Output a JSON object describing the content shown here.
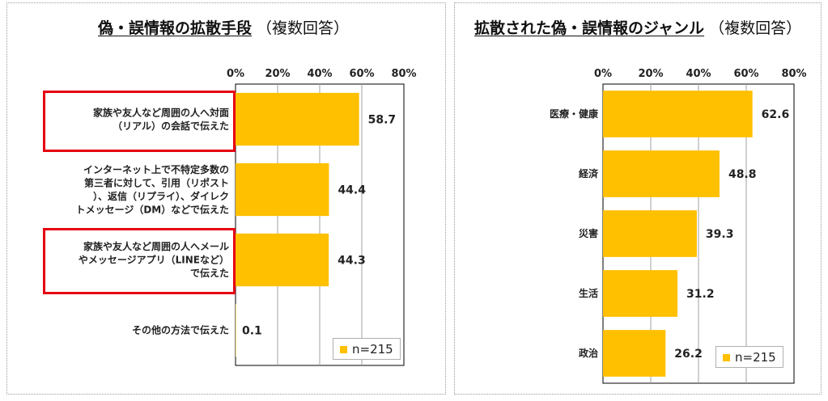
{
  "colors": {
    "bar": "#FFC000",
    "highlight": "#E60012",
    "grid": "#a0a0a0"
  },
  "left": {
    "title": "偽・誤情報の拡散手段",
    "subtitle": "（複数回答）",
    "legend": "n=215"
  },
  "right": {
    "title": "拡散された偽・誤情報のジャンル",
    "subtitle": "（複数回答）",
    "legend": "n=215"
  },
  "chart_data": [
    {
      "type": "bar",
      "orientation": "horizontal",
      "title": "偽・誤情報の拡散手段",
      "subtitle": "（複数回答）",
      "xlim": [
        0,
        80
      ],
      "xticks": [
        "0%",
        "20%",
        "40%",
        "60%",
        "80%"
      ],
      "grid": true,
      "legend": "n=215",
      "legend_position": "bottom-right",
      "categories": [
        [
          "家族や友人など周囲の人へ対面",
          "（リアル）の会話で伝えた"
        ],
        [
          "インターネット上で不特定多数の",
          "第三者に対して、引用（リポスト",
          "）、返信（リプライ）、ダイレク",
          "トメッセージ（DM）などで伝えた"
        ],
        [
          "家族や友人など周囲の人へメール",
          "やメッセージアプリ（LINEなど）",
          "で伝えた"
        ],
        [
          "その他の方法で伝えた"
        ]
      ],
      "values": [
        58.7,
        44.4,
        44.3,
        0.1
      ],
      "value_labels": [
        "58.7",
        "44.4",
        "44.3",
        "0.1"
      ],
      "highlighted": [
        true,
        false,
        true,
        false
      ]
    },
    {
      "type": "bar",
      "orientation": "horizontal",
      "title": "拡散された偽・誤情報のジャンル",
      "subtitle": "（複数回答）",
      "xlim": [
        0,
        80
      ],
      "xticks": [
        "0%",
        "20%",
        "40%",
        "60%",
        "80%"
      ],
      "grid": true,
      "legend": "n=215",
      "legend_position": "bottom-right",
      "categories": [
        [
          "医療・健康"
        ],
        [
          "経済"
        ],
        [
          "災害"
        ],
        [
          "生活"
        ],
        [
          "政治"
        ]
      ],
      "values": [
        62.6,
        48.8,
        39.3,
        31.2,
        26.2
      ],
      "value_labels": [
        "62.6",
        "48.8",
        "39.3",
        "31.2",
        "26.2"
      ],
      "highlighted": [
        false,
        false,
        false,
        false,
        false
      ]
    }
  ]
}
